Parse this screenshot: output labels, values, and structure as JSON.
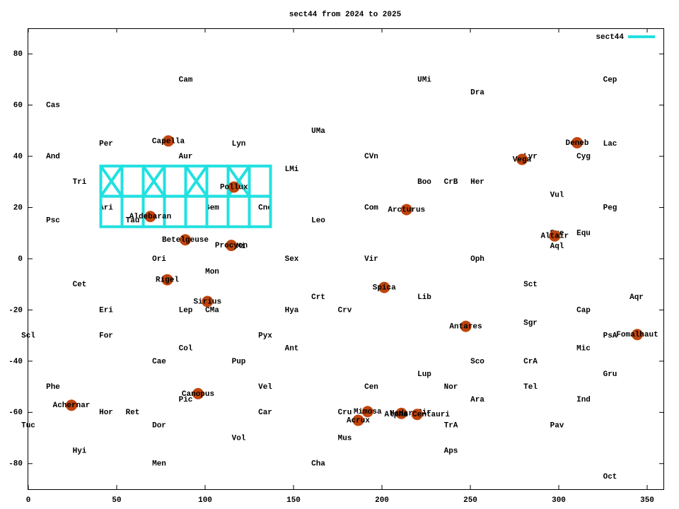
{
  "chart_data": {
    "type": "scatter",
    "title": "sect44 from 2024 to 2025",
    "xlim": [
      0,
      360
    ],
    "ylim": [
      -90,
      90
    ],
    "xticks": [
      0,
      50,
      100,
      150,
      200,
      250,
      300,
      350
    ],
    "yticks": [
      -80,
      -60,
      -40,
      -20,
      0,
      20,
      40,
      60,
      80
    ],
    "legend": "top right",
    "constellations": [
      {
        "name": "Cam",
        "x": 89,
        "y": 70
      },
      {
        "name": "UMi",
        "x": 224,
        "y": 70
      },
      {
        "name": "Dra",
        "x": 254,
        "y": 65
      },
      {
        "name": "Cep",
        "x": 329,
        "y": 70
      },
      {
        "name": "Cas",
        "x": 14,
        "y": 60
      },
      {
        "name": "UMa",
        "x": 164,
        "y": 50
      },
      {
        "name": "Per",
        "x": 44,
        "y": 45
      },
      {
        "name": "Lyn",
        "x": 119,
        "y": 45
      },
      {
        "name": "Lac",
        "x": 329,
        "y": 45
      },
      {
        "name": "And",
        "x": 14,
        "y": 40
      },
      {
        "name": "Aur",
        "x": 89,
        "y": 40
      },
      {
        "name": "CVn",
        "x": 194,
        "y": 40
      },
      {
        "name": "Cyg",
        "x": 314,
        "y": 40
      },
      {
        "name": "Lyr",
        "x": 284,
        "y": 40
      },
      {
        "name": "LMi",
        "x": 149,
        "y": 35
      },
      {
        "name": "Tri",
        "x": 29,
        "y": 30
      },
      {
        "name": "Boo",
        "x": 224,
        "y": 30
      },
      {
        "name": "CrB",
        "x": 239,
        "y": 30
      },
      {
        "name": "Her",
        "x": 254,
        "y": 30
      },
      {
        "name": "Vul",
        "x": 299,
        "y": 25
      },
      {
        "name": "Ari",
        "x": 44,
        "y": 20
      },
      {
        "name": "Gem",
        "x": 104,
        "y": 20
      },
      {
        "name": "Cnc",
        "x": 134,
        "y": 20
      },
      {
        "name": "Com",
        "x": 194,
        "y": 20
      },
      {
        "name": "Peg",
        "x": 329,
        "y": 20
      },
      {
        "name": "Psc",
        "x": 14,
        "y": 15
      },
      {
        "name": "Tau",
        "x": 59,
        "y": 15
      },
      {
        "name": "Leo",
        "x": 164,
        "y": 15
      },
      {
        "name": "Sge",
        "x": 299,
        "y": 10
      },
      {
        "name": "Equ",
        "x": 314,
        "y": 10
      },
      {
        "name": "CMi",
        "x": 119,
        "y": 5
      },
      {
        "name": "Aql",
        "x": 299,
        "y": 5
      },
      {
        "name": "Ori",
        "x": 74,
        "y": 0
      },
      {
        "name": "Sex",
        "x": 149,
        "y": 0
      },
      {
        "name": "Vir",
        "x": 194,
        "y": 0
      },
      {
        "name": "Oph",
        "x": 254,
        "y": 0
      },
      {
        "name": "Mon",
        "x": 104,
        "y": -5
      },
      {
        "name": "Cet",
        "x": 29,
        "y": -10
      },
      {
        "name": "Sct",
        "x": 284,
        "y": -10
      },
      {
        "name": "Crt",
        "x": 164,
        "y": -15
      },
      {
        "name": "Lib",
        "x": 224,
        "y": -15
      },
      {
        "name": "Aqr",
        "x": 344,
        "y": -15
      },
      {
        "name": "Eri",
        "x": 44,
        "y": -20
      },
      {
        "name": "Lep",
        "x": 89,
        "y": -20
      },
      {
        "name": "CMa",
        "x": 104,
        "y": -20
      },
      {
        "name": "Hya",
        "x": 149,
        "y": -20
      },
      {
        "name": "Crv",
        "x": 179,
        "y": -20
      },
      {
        "name": "Cap",
        "x": 314,
        "y": -20
      },
      {
        "name": "Sgr",
        "x": 284,
        "y": -25
      },
      {
        "name": "Scl",
        "x": 0,
        "y": -30
      },
      {
        "name": "For",
        "x": 44,
        "y": -30
      },
      {
        "name": "Pyx",
        "x": 134,
        "y": -30
      },
      {
        "name": "PsA",
        "x": 329,
        "y": -30
      },
      {
        "name": "Col",
        "x": 89,
        "y": -35
      },
      {
        "name": "Ant",
        "x": 149,
        "y": -35
      },
      {
        "name": "Mic",
        "x": 314,
        "y": -35
      },
      {
        "name": "Cae",
        "x": 74,
        "y": -40
      },
      {
        "name": "Pup",
        "x": 119,
        "y": -40
      },
      {
        "name": "Sco",
        "x": 254,
        "y": -40
      },
      {
        "name": "CrA",
        "x": 284,
        "y": -40
      },
      {
        "name": "Lup",
        "x": 224,
        "y": -45
      },
      {
        "name": "Gru",
        "x": 329,
        "y": -45
      },
      {
        "name": "Phe",
        "x": 14,
        "y": -50
      },
      {
        "name": "Vel",
        "x": 134,
        "y": -50
      },
      {
        "name": "Cen",
        "x": 194,
        "y": -50
      },
      {
        "name": "Nor",
        "x": 239,
        "y": -50
      },
      {
        "name": "Tel",
        "x": 284,
        "y": -50
      },
      {
        "name": "Pic",
        "x": 89,
        "y": -55
      },
      {
        "name": "Ara",
        "x": 254,
        "y": -55
      },
      {
        "name": "Ind",
        "x": 314,
        "y": -55
      },
      {
        "name": "Hor",
        "x": 44,
        "y": -60
      },
      {
        "name": "Ret",
        "x": 59,
        "y": -60
      },
      {
        "name": "Car",
        "x": 134,
        "y": -60
      },
      {
        "name": "Cru",
        "x": 179,
        "y": -60
      },
      {
        "name": "Cir",
        "x": 224,
        "y": -60
      },
      {
        "name": "Tuc",
        "x": 0,
        "y": -65
      },
      {
        "name": "Dor",
        "x": 74,
        "y": -65
      },
      {
        "name": "TrA",
        "x": 239,
        "y": -65
      },
      {
        "name": "Pav",
        "x": 299,
        "y": -65
      },
      {
        "name": "Vol",
        "x": 119,
        "y": -70
      },
      {
        "name": "Mus",
        "x": 179,
        "y": -70
      },
      {
        "name": "Hyi",
        "x": 29,
        "y": -75
      },
      {
        "name": "Aps",
        "x": 239,
        "y": -75
      },
      {
        "name": "Men",
        "x": 74,
        "y": -80
      },
      {
        "name": "Cha",
        "x": 164,
        "y": -80
      },
      {
        "name": "Oct",
        "x": 329,
        "y": -85
      }
    ],
    "stars": {
      "color": "#c0440c",
      "points": [
        {
          "name": "Capella",
          "x": 79.2,
          "y": 46.0
        },
        {
          "name": "Deneb",
          "x": 310.4,
          "y": 45.3
        },
        {
          "name": "Vega",
          "x": 279.2,
          "y": 38.8
        },
        {
          "name": "Pollux",
          "x": 116.3,
          "y": 28.0
        },
        {
          "name": "Arcturus",
          "x": 213.9,
          "y": 19.2
        },
        {
          "name": "Aldebaran",
          "x": 69.0,
          "y": 16.5
        },
        {
          "name": "Altair",
          "x": 297.7,
          "y": 8.9
        },
        {
          "name": "Betelgeuse",
          "x": 88.8,
          "y": 7.4
        },
        {
          "name": "Procyon",
          "x": 114.8,
          "y": 5.2
        },
        {
          "name": "Rigel",
          "x": 78.6,
          "y": -8.2
        },
        {
          "name": "Spica",
          "x": 201.3,
          "y": -11.2
        },
        {
          "name": "Sirius",
          "x": 101.3,
          "y": -16.7
        },
        {
          "name": "Antares",
          "x": 247.4,
          "y": -26.4
        },
        {
          "name": "Fomalhaut",
          "x": 344.4,
          "y": -29.6
        },
        {
          "name": "Canopus",
          "x": 96.0,
          "y": -52.7
        },
        {
          "name": "Achernar",
          "x": 24.4,
          "y": -57.2
        },
        {
          "name": "Mimosa",
          "x": 191.9,
          "y": -59.7
        },
        {
          "name": "Hadar",
          "x": 211.0,
          "y": -60.4
        },
        {
          "name": "Alpha Centauri",
          "x": 219.9,
          "y": -60.8
        },
        {
          "name": "Acrux",
          "x": 186.6,
          "y": -63.1
        }
      ]
    },
    "series": [
      {
        "name": "sect44",
        "color": "#22e0e0",
        "cells": [
          {
            "ra": [
              41,
              53
            ],
            "dec": [
              24.4,
              36.2
            ],
            "cross": true
          },
          {
            "ra": [
              53,
              65
            ],
            "dec": [
              24.4,
              36.2
            ],
            "cross": false
          },
          {
            "ra": [
              65,
              77
            ],
            "dec": [
              24.4,
              36.2
            ],
            "cross": true
          },
          {
            "ra": [
              77,
              89
            ],
            "dec": [
              24.4,
              36.2
            ],
            "cross": false
          },
          {
            "ra": [
              89,
              101
            ],
            "dec": [
              24.4,
              36.2
            ],
            "cross": true
          },
          {
            "ra": [
              101,
              113
            ],
            "dec": [
              24.4,
              36.2
            ],
            "cross": false
          },
          {
            "ra": [
              113,
              125
            ],
            "dec": [
              24.4,
              36.2
            ],
            "cross": true
          },
          {
            "ra": [
              125,
              137
            ],
            "dec": [
              24.4,
              36.2
            ],
            "cross": false
          },
          {
            "ra": [
              41,
              53
            ],
            "dec": [
              12.5,
              24.4
            ],
            "cross": false
          },
          {
            "ra": [
              53,
              65
            ],
            "dec": [
              12.5,
              24.4
            ],
            "cross": false
          },
          {
            "ra": [
              65,
              77
            ],
            "dec": [
              12.5,
              24.4
            ],
            "cross": false
          },
          {
            "ra": [
              77,
              89
            ],
            "dec": [
              12.5,
              24.4
            ],
            "cross": false
          },
          {
            "ra": [
              89,
              101
            ],
            "dec": [
              12.5,
              24.4
            ],
            "cross": false
          },
          {
            "ra": [
              101,
              113
            ],
            "dec": [
              12.5,
              24.4
            ],
            "cross": false
          },
          {
            "ra": [
              113,
              125
            ],
            "dec": [
              12.5,
              24.4
            ],
            "cross": false
          },
          {
            "ra": [
              125,
              137
            ],
            "dec": [
              12.5,
              24.4
            ],
            "cross": false
          }
        ]
      }
    ]
  }
}
